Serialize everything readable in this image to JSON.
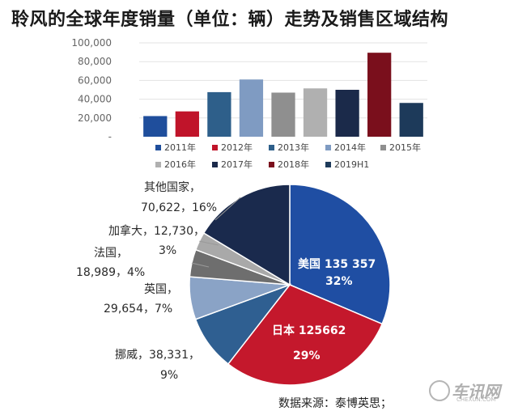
{
  "title": "聆风的全球年度销量（单位：辆）走势及销售区域结构",
  "source": "数据来源：泰博英思；",
  "watermark": {
    "text": "车讯网",
    "sub": "CHEXUN.COM",
    "icon": "chexun-logo-icon"
  },
  "chart_data": [
    {
      "type": "bar",
      "title": "",
      "categories": [
        "2011年",
        "2012年",
        "2013年",
        "2014年",
        "2015年",
        "2016年",
        "2017年",
        "2018年",
        "2019H1"
      ],
      "values": [
        22000,
        27000,
        47500,
        61000,
        47000,
        51500,
        50000,
        89500,
        36000
      ],
      "ylim": [
        0,
        100000
      ],
      "yticks": [
        {
          "value": 0,
          "label": "-"
        },
        {
          "value": 20000,
          "label": "20,000"
        },
        {
          "value": 40000,
          "label": "40,000"
        },
        {
          "value": 60000,
          "label": "60,000"
        },
        {
          "value": 80000,
          "label": "80,000"
        },
        {
          "value": 100000,
          "label": "100,000"
        }
      ],
      "colors": [
        "#1f4e9c",
        "#c0142a",
        "#2e5f8a",
        "#7f9bc2",
        "#8f8f8f",
        "#b0b0b0",
        "#1b2a4a",
        "#7a0f1c",
        "#1d3a5a"
      ],
      "grid": true,
      "legend_position": "bottom",
      "legend": [
        "2011年",
        "2012年",
        "2013年",
        "2014年",
        "2015年",
        "2016年",
        "2017年",
        "2018年",
        "2019H1"
      ]
    },
    {
      "type": "pie",
      "slices": [
        {
          "name": "美国",
          "value": 135357,
          "percent": "32%",
          "value_text": "135 357",
          "color": "#1f4ea3"
        },
        {
          "name": "日本",
          "value": 125662,
          "percent": "29%",
          "value_text": "125662",
          "color": "#c4182c"
        },
        {
          "name": "挪威",
          "value": 38331,
          "percent": "9%",
          "value_text": "38,331",
          "color": "#2f5f91"
        },
        {
          "name": "英国",
          "value": 29654,
          "percent": "7%",
          "value_text": "29,654",
          "color": "#8aa3c6"
        },
        {
          "name": "法国",
          "value": 18989,
          "percent": "4%",
          "value_text": "18,989",
          "color": "#6e6e6e"
        },
        {
          "name": "加拿大",
          "value": 12730,
          "percent": "3%",
          "value_text": "12,730",
          "color": "#a9a9a9"
        },
        {
          "name": "其他国家",
          "value": 70622,
          "percent": "16%",
          "value_text": "70,622",
          "color": "#1a2a4d"
        }
      ],
      "labels": {
        "usa": {
          "line1": "美国 135 357",
          "line2": "32%"
        },
        "japan": {
          "line1": "日本 125662",
          "line2": "29%"
        },
        "norway": {
          "line1": "挪威，38,331，",
          "line2": "9%"
        },
        "uk": {
          "line1": "英国，",
          "line2": "29,654，7%"
        },
        "france": {
          "line1": "法国，",
          "line2": "18,989，4%"
        },
        "canada": {
          "line1": "加拿大，12,730，",
          "line2": "3%"
        },
        "other": {
          "line1": "其他国家，",
          "line2": "70,622，16%"
        }
      }
    }
  ]
}
